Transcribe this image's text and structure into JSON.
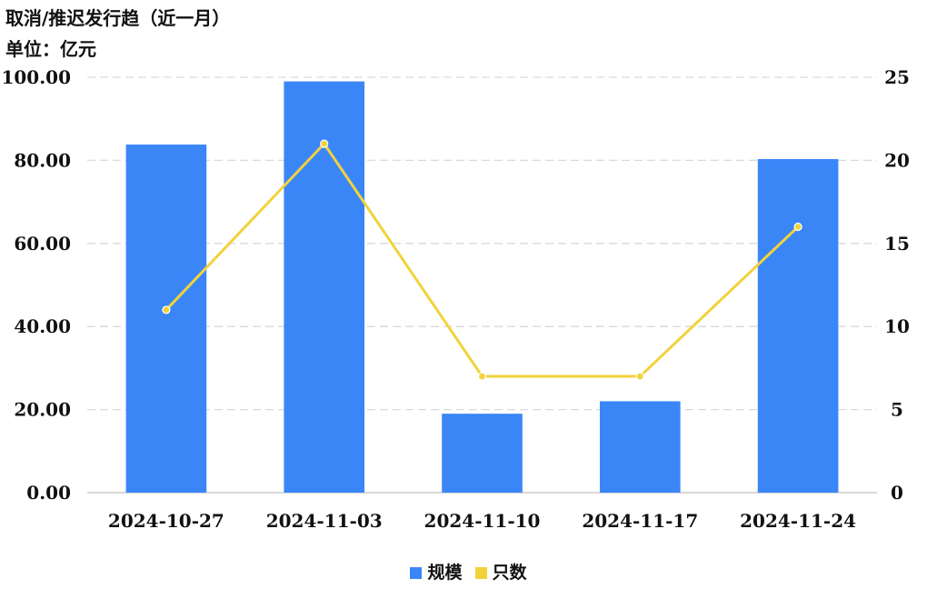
{
  "title": "取消/推迟发行趋（近一月）",
  "unit_label": "单位：亿元",
  "colors": {
    "bar": "#3b86f7",
    "line": "#f2d23c",
    "grid": "#d9d9d9",
    "axis": "#cccccc"
  },
  "chart_data": {
    "type": "bar",
    "categories": [
      "2024-10-27",
      "2024-11-03",
      "2024-11-10",
      "2024-11-17",
      "2024-11-24"
    ],
    "series": [
      {
        "name": "规模",
        "type": "bar",
        "axis": "left",
        "values": [
          83.8,
          99.0,
          19.0,
          22.0,
          80.3
        ]
      },
      {
        "name": "只数",
        "type": "line",
        "axis": "right",
        "values": [
          11,
          21,
          7,
          7,
          16
        ]
      }
    ],
    "left_axis": {
      "ylim": [
        0,
        100
      ],
      "ticks": [
        "0.00",
        "20.00",
        "40.00",
        "60.00",
        "80.00",
        "100.00"
      ]
    },
    "right_axis": {
      "ylim": [
        0,
        25
      ],
      "ticks": [
        "0",
        "5",
        "10",
        "15",
        "20",
        "25"
      ]
    },
    "grid": true,
    "legend_position": "bottom-center"
  }
}
